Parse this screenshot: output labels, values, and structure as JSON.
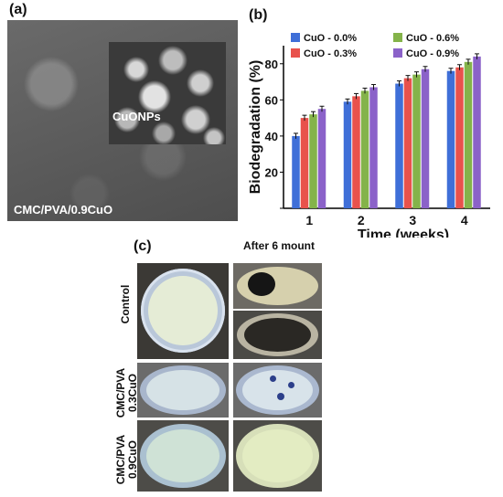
{
  "panel_a": {
    "label": "(a)",
    "inset_label": "CuONPs",
    "image_label": "CMC/PVA/0.9CuO"
  },
  "panel_b": {
    "label": "(b)"
  },
  "panel_c": {
    "label": "(c)",
    "column_header": "After 6 mount",
    "row_labels": [
      {
        "line1": "Control",
        "line2": ""
      },
      {
        "line1": "CMC/PVA",
        "line2": "0.3CuO"
      },
      {
        "line1": "CMC/PVA",
        "line2": "0.9CuO"
      }
    ]
  },
  "colors": {
    "series": [
      "#3f6fd8",
      "#e8524c",
      "#84b34a",
      "#8b62c9"
    ]
  },
  "chart_data": {
    "type": "bar",
    "categories": [
      "1",
      "2",
      "3",
      "4"
    ],
    "series": [
      {
        "name": "CuO - 0.0%",
        "values": [
          40,
          59,
          69,
          76
        ]
      },
      {
        "name": "CuO - 0.3%",
        "values": [
          50,
          62,
          72,
          78
        ]
      },
      {
        "name": "CuO - 0.6%",
        "values": [
          52,
          65,
          74,
          81
        ]
      },
      {
        "name": "CuO - 0.9%",
        "values": [
          55,
          67,
          77,
          84
        ]
      }
    ],
    "error": 1.5,
    "xlabel": "Time (weeks)",
    "ylabel": "Biodegradation (%)",
    "ylim": [
      0,
      90
    ],
    "yticks": [
      0,
      20,
      40,
      60,
      80
    ],
    "ytick_labels": [
      "",
      "20",
      "40",
      "60",
      "80"
    ],
    "legend_position": "top",
    "grid": false
  }
}
